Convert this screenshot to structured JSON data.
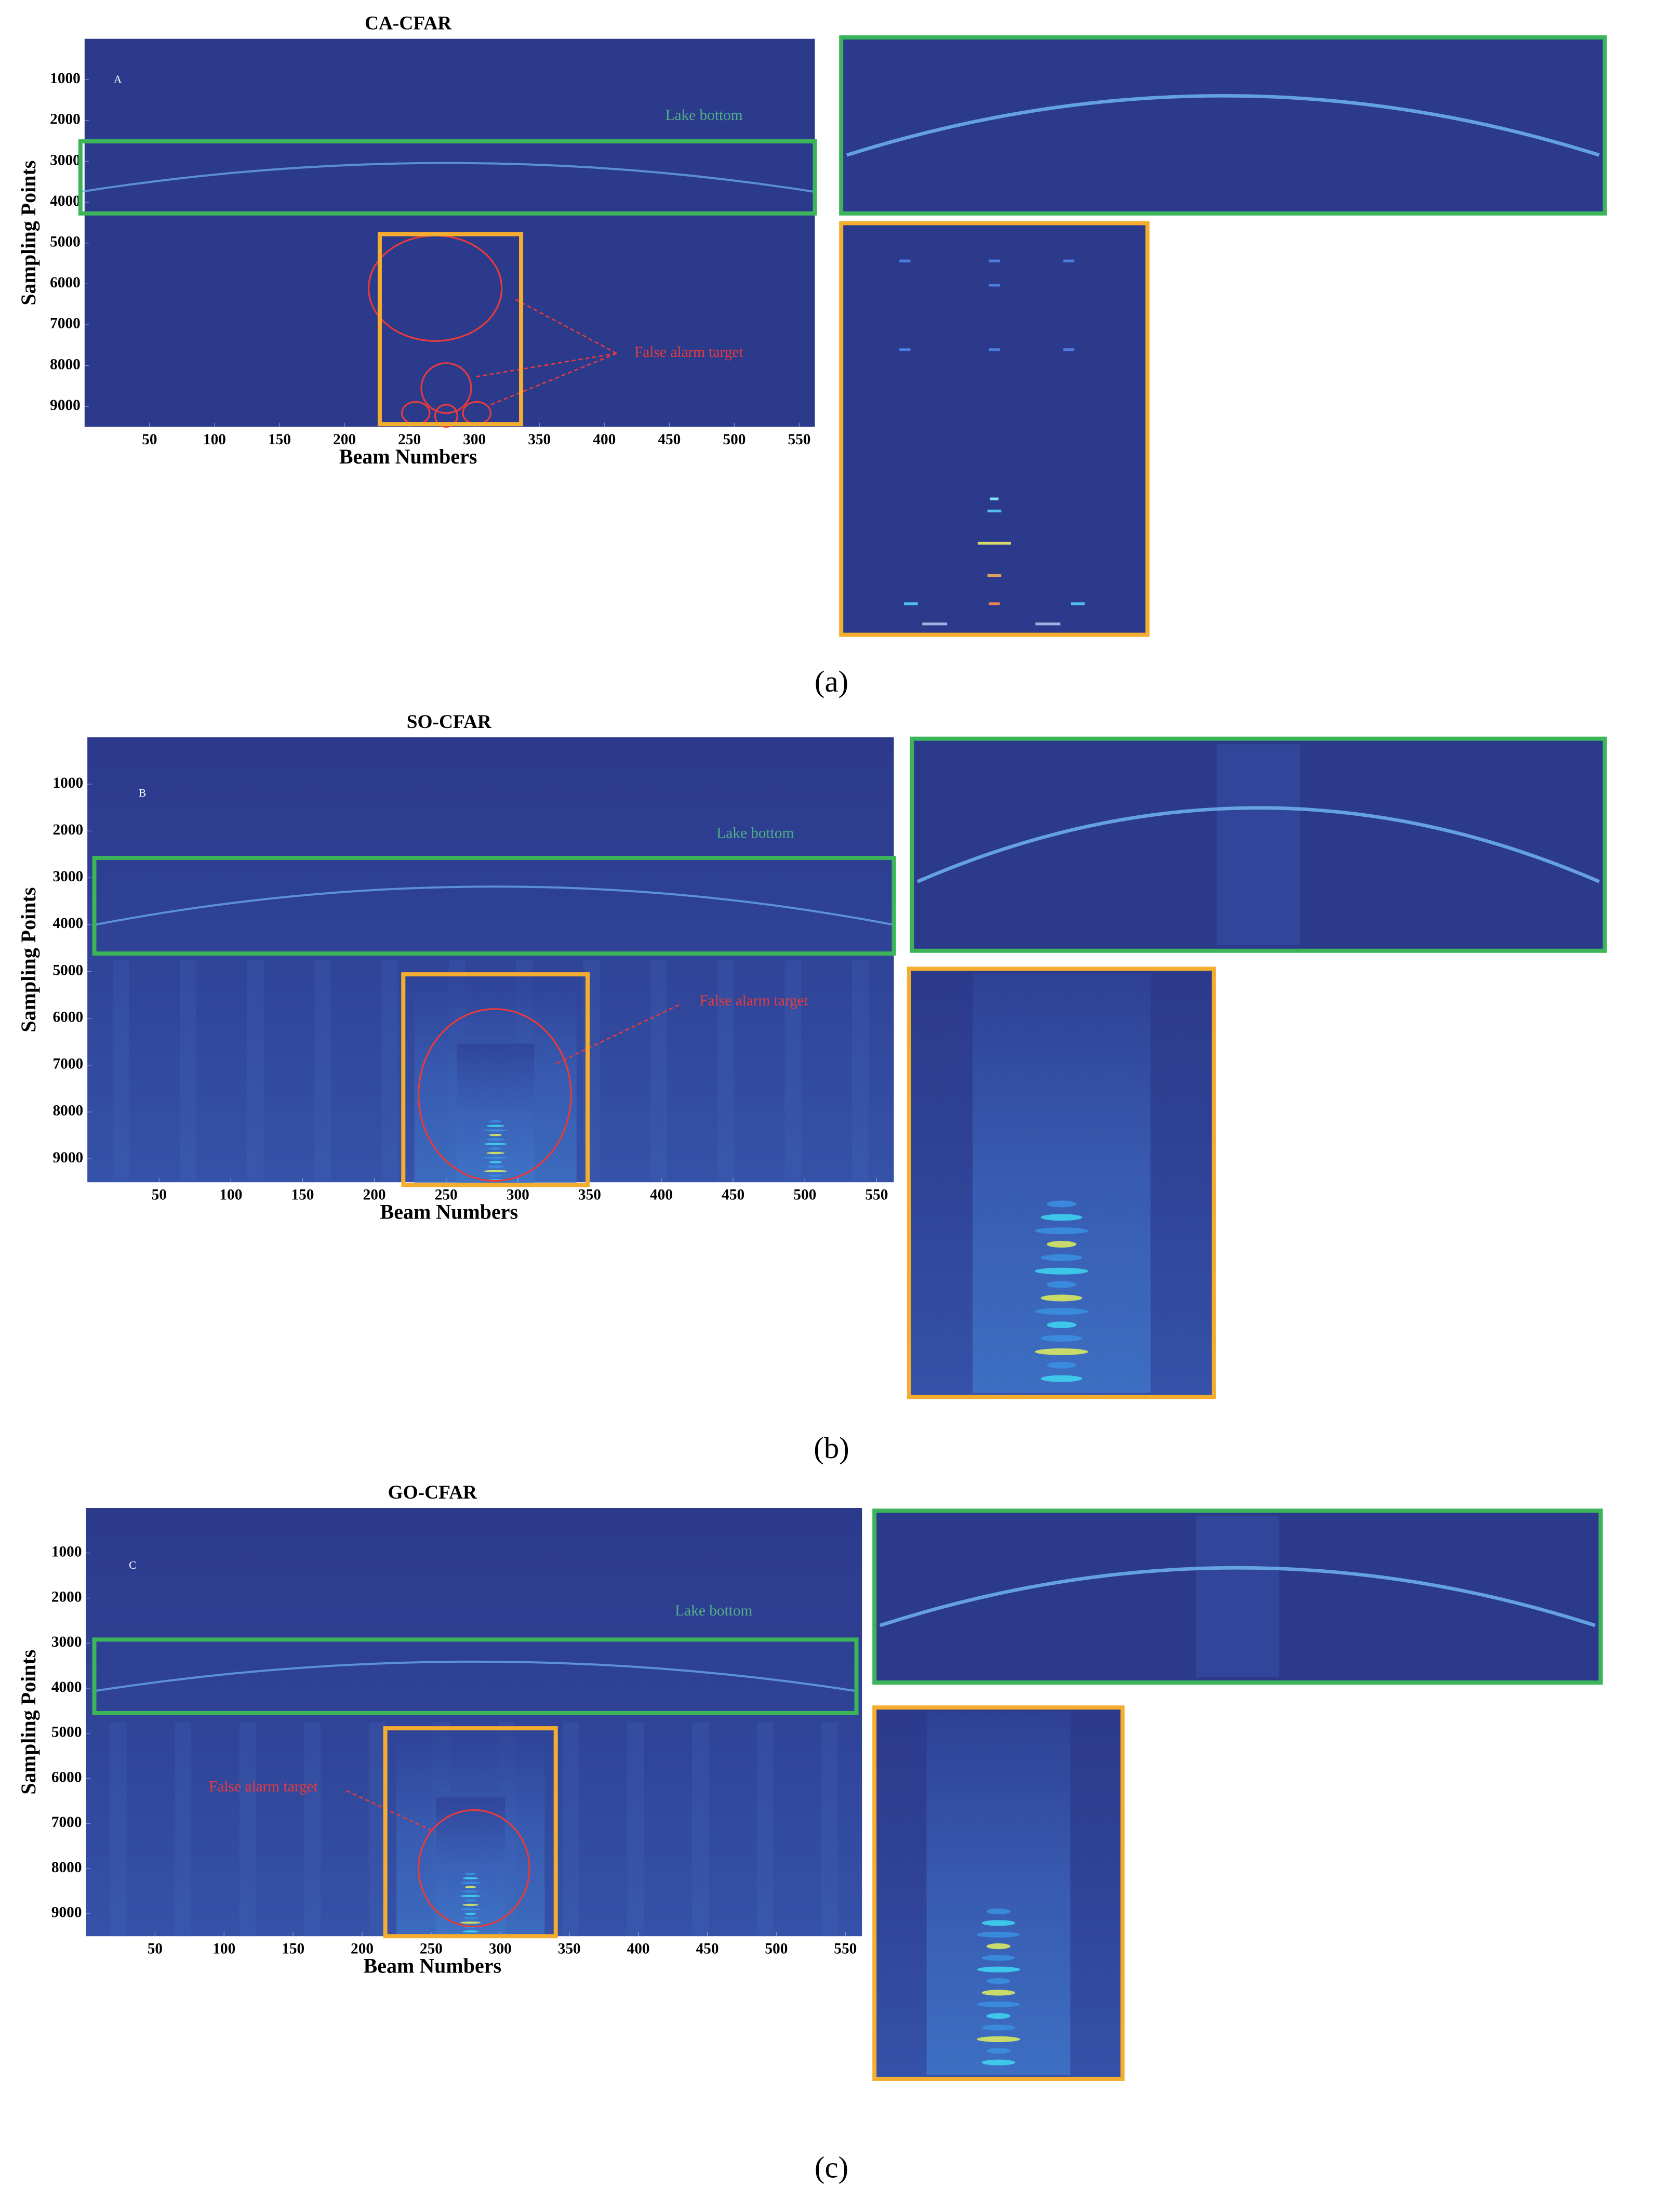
{
  "chart_data": [
    {
      "type": "heatmap",
      "title": "CA-CFAR",
      "panel_label": "A",
      "xlabel": "Beam Numbers",
      "ylabel": "Sampling Points",
      "xlim": [
        0,
        562
      ],
      "xticks": [
        50,
        100,
        150,
        200,
        250,
        300,
        350,
        400,
        450,
        500,
        550
      ],
      "ylim": [
        0,
        9500
      ],
      "yticks": [
        1000,
        2000,
        3000,
        4000,
        5000,
        6000,
        7000,
        8000,
        9000
      ],
      "y_inverted": true,
      "annotations": [
        "Lake bottom",
        "False alarm target"
      ],
      "caption": "(a)"
    },
    {
      "type": "heatmap",
      "title": "SO-CFAR",
      "panel_label": "B",
      "xlabel": "Beam Numbers",
      "ylabel": "Sampling Points",
      "xlim": [
        0,
        562
      ],
      "xticks": [
        50,
        100,
        150,
        200,
        250,
        300,
        350,
        400,
        450,
        500,
        550
      ],
      "ylim": [
        0,
        9500
      ],
      "yticks": [
        1000,
        2000,
        3000,
        4000,
        5000,
        6000,
        7000,
        8000,
        9000
      ],
      "y_inverted": true,
      "annotations": [
        "Lake bottom",
        "False alarm target"
      ],
      "caption": "(b)"
    },
    {
      "type": "heatmap",
      "title": "GO-CFAR",
      "panel_label": "C",
      "xlabel": "Beam Numbers",
      "ylabel": "Sampling Points",
      "xlim": [
        0,
        562
      ],
      "xticks": [
        50,
        100,
        150,
        200,
        250,
        300,
        350,
        400,
        450,
        500,
        550
      ],
      "ylim": [
        0,
        9500
      ],
      "yticks": [
        1000,
        2000,
        3000,
        4000,
        5000,
        6000,
        7000,
        8000,
        9000
      ],
      "y_inverted": true,
      "annotations": [
        "Lake bottom",
        "False alarm target"
      ],
      "caption": "(c)"
    }
  ]
}
